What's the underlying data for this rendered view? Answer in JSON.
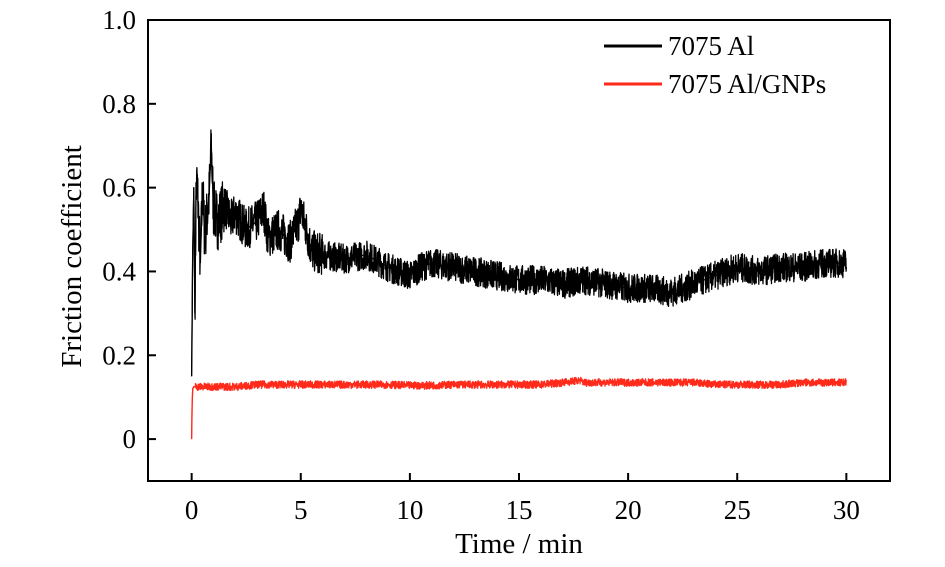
{
  "chart_data": {
    "type": "line",
    "xlabel": "Time / min",
    "ylabel": "Friction coefficient",
    "xlim": [
      -2,
      32
    ],
    "ylim": [
      -0.1,
      1.0
    ],
    "xticks": [
      0,
      5,
      10,
      15,
      20,
      25,
      30
    ],
    "xtick_labels": [
      "0",
      "5",
      "10",
      "15",
      "20",
      "25",
      "30"
    ],
    "yticks": [
      0,
      0.2,
      0.4,
      0.6,
      0.8,
      1.0
    ],
    "ytick_labels": [
      "0",
      "0.2",
      "0.4",
      "0.6",
      "0.8",
      "1.0"
    ],
    "grid": false,
    "legend": "top-right",
    "series": [
      {
        "name": "7075 Al",
        "color": "#000000",
        "x": [
          0,
          0.05,
          0.1,
          0.15,
          0.2,
          0.25,
          0.3,
          0.4,
          0.5,
          0.6,
          0.8,
          0.9,
          1.0,
          1.2,
          1.5,
          1.8,
          2.0,
          2.5,
          3.0,
          3.3,
          3.5,
          4.0,
          4.5,
          4.9,
          5.0,
          5.5,
          6.0,
          7.0,
          8.0,
          9.0,
          10.0,
          10.5,
          11.0,
          12.0,
          13.0,
          14.0,
          15.0,
          16.0,
          17.0,
          18.0,
          19.0,
          20.0,
          21.0,
          22.0,
          23.0,
          24.0,
          25.0,
          26.0,
          27.0,
          28.0,
          29.0,
          30.0
        ],
        "y": [
          0.15,
          0.45,
          0.6,
          0.3,
          0.58,
          0.62,
          0.55,
          0.42,
          0.6,
          0.48,
          0.58,
          0.7,
          0.55,
          0.52,
          0.56,
          0.52,
          0.54,
          0.5,
          0.52,
          0.55,
          0.48,
          0.5,
          0.47,
          0.52,
          0.55,
          0.45,
          0.44,
          0.43,
          0.44,
          0.41,
          0.39,
          0.41,
          0.42,
          0.41,
          0.4,
          0.39,
          0.38,
          0.38,
          0.37,
          0.38,
          0.37,
          0.36,
          0.36,
          0.35,
          0.37,
          0.39,
          0.41,
          0.4,
          0.41,
          0.41,
          0.42,
          0.42
        ]
      },
      {
        "name": "7075 Al/GNPs",
        "color": "#ff2a1a",
        "x": [
          0,
          0.02,
          0.05,
          0.1,
          1.0,
          2.0,
          3.0,
          4.0,
          5.0,
          6.0,
          7.0,
          8.0,
          9.0,
          10.0,
          11.0,
          12.0,
          13.0,
          14.0,
          15.0,
          16.0,
          17.0,
          17.8,
          18.0,
          19.0,
          20.0,
          21.0,
          22.0,
          23.0,
          24.0,
          25.0,
          26.0,
          27.0,
          28.0,
          29.0,
          30.0
        ],
        "y": [
          0.0,
          0.08,
          0.12,
          0.125,
          0.125,
          0.125,
          0.13,
          0.13,
          0.13,
          0.13,
          0.13,
          0.13,
          0.13,
          0.128,
          0.128,
          0.13,
          0.13,
          0.13,
          0.13,
          0.13,
          0.135,
          0.14,
          0.135,
          0.135,
          0.135,
          0.135,
          0.135,
          0.135,
          0.13,
          0.13,
          0.13,
          0.13,
          0.135,
          0.135,
          0.135
        ]
      }
    ]
  }
}
